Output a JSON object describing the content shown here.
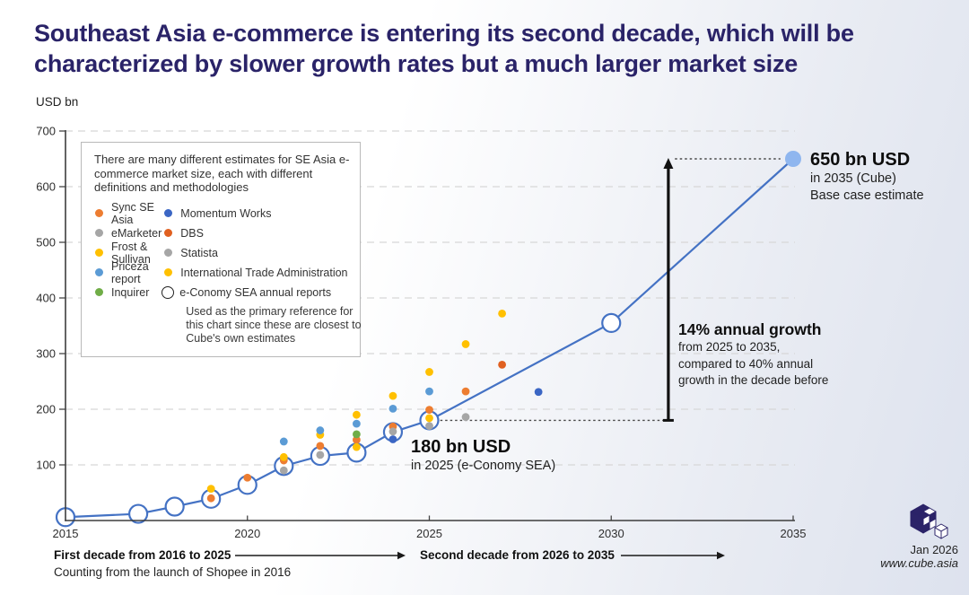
{
  "header": {
    "title_line1": "Southeast Asia e-commerce is entering its second decade, which will be",
    "title_line2": "characterized by slower growth rates but a much larger market size",
    "units_label": "USD bn"
  },
  "colors": {
    "title": "#2a2368",
    "line": "#4472C4",
    "cube_point": "#8FB6EF",
    "brand_navy": "#2B2368"
  },
  "note_box": {
    "intro": "There are many different estimates for SE Asia e-commerce market size, each with different definitions and methodologies",
    "legend_left": [
      {
        "label": "Sync SE Asia",
        "color": "#ED7D31"
      },
      {
        "label": "eMarketer",
        "color": "#A6A6A6"
      },
      {
        "label": "Frost & Sullivan",
        "color": "#FFC000"
      },
      {
        "label": "Priceza report",
        "color": "#5B9BD5"
      },
      {
        "label": "Inquirer",
        "color": "#70AD47"
      }
    ],
    "legend_right": [
      {
        "label": "Momentum Works",
        "color": "#3B66C4"
      },
      {
        "label": "DBS",
        "color": "#E06020"
      },
      {
        "label": "Statista",
        "color": "#A6A6A6"
      },
      {
        "label": "International Trade Administration",
        "color": "#FFC000"
      },
      {
        "label": "e-Conomy SEA annual reports",
        "marker": "open-circle"
      }
    ],
    "primary_note": "Used as the primary reference for this chart since these are closest to Cube's own estimates"
  },
  "annotations": {
    "peak": {
      "value": "650 bn USD",
      "line2": "in 2035 (Cube)",
      "line3": "Base case estimate"
    },
    "growth": {
      "title": "14% annual growth",
      "line2": "from 2025 to 2035,",
      "line3": "compared to 40% annual",
      "line4": "growth in the decade before"
    },
    "base": {
      "value": "180 bn USD",
      "line2": "in 2025 (e-Conomy SEA)"
    }
  },
  "footer": {
    "first_decade": "First decade from 2016 to 2025",
    "first_decade_sub": "Counting from the launch of Shopee in 2016",
    "second_decade": "Second decade from 2026 to 2035",
    "date": "Jan 2026",
    "website": "www.cube.asia"
  },
  "chart_data": {
    "type": "scatter",
    "title": "SE Asia e-commerce market size estimates",
    "ylabel": "USD bn",
    "xlim": [
      2015,
      2035
    ],
    "ylim": [
      0,
      700
    ],
    "xticks": [
      2015,
      2020,
      2025,
      2030,
      2035
    ],
    "yticks": [
      100,
      200,
      300,
      400,
      500,
      600,
      700
    ],
    "grid": "horizontal-dashed",
    "line_series": {
      "name": "e-Conomy SEA annual reports",
      "color": "#4472C4",
      "marker": "open-circle",
      "points": [
        [
          2015,
          6
        ],
        [
          2017,
          12
        ],
        [
          2018,
          25
        ],
        [
          2019,
          39
        ],
        [
          2020,
          64
        ],
        [
          2021,
          98
        ],
        [
          2022,
          116
        ],
        [
          2023,
          122
        ],
        [
          2024,
          159
        ],
        [
          2025,
          180
        ],
        [
          2030,
          355
        ],
        [
          2035,
          650
        ]
      ]
    },
    "cube_point": {
      "name": "Cube base case estimate",
      "x": 2035,
      "y": 650,
      "color": "#8FB6EF"
    },
    "estimates": [
      {
        "source": "Sync SE Asia",
        "color": "#ED7D31",
        "points": [
          [
            2019,
            40
          ],
          [
            2020,
            77
          ],
          [
            2021,
            108
          ],
          [
            2022,
            134
          ],
          [
            2023,
            145
          ],
          [
            2024,
            169
          ],
          [
            2025,
            199
          ],
          [
            2026,
            232
          ]
        ]
      },
      {
        "source": "eMarketer",
        "color": "#A6A6A6",
        "points": [
          [
            2021,
            90
          ],
          [
            2022,
            118
          ],
          [
            2025,
            170
          ]
        ]
      },
      {
        "source": "Frost & Sullivan",
        "color": "#FFC000",
        "points": [
          [
            2019,
            57
          ],
          [
            2021,
            114
          ],
          [
            2022,
            154
          ],
          [
            2023,
            132
          ],
          [
            2023,
            190
          ],
          [
            2024,
            224
          ],
          [
            2025,
            267
          ]
        ]
      },
      {
        "source": "Priceza report",
        "color": "#5B9BD5",
        "points": [
          [
            2021,
            142
          ],
          [
            2022,
            162
          ],
          [
            2023,
            174
          ],
          [
            2024,
            201
          ],
          [
            2025,
            232
          ]
        ]
      },
      {
        "source": "Inquirer",
        "color": "#70AD47",
        "points": [
          [
            2023,
            155
          ]
        ]
      },
      {
        "source": "Momentum Works",
        "color": "#3B66C4",
        "points": [
          [
            2024,
            146
          ],
          [
            2028,
            231
          ]
        ]
      },
      {
        "source": "DBS",
        "color": "#E06020",
        "points": [
          [
            2027,
            280
          ]
        ]
      },
      {
        "source": "Statista",
        "color": "#A6A6A6",
        "points": [
          [
            2024,
            160
          ],
          [
            2026,
            186
          ]
        ]
      },
      {
        "source": "International Trade Administration",
        "color": "#FFC000",
        "points": [
          [
            2025,
            184
          ],
          [
            2026,
            317
          ],
          [
            2027,
            372
          ]
        ]
      }
    ],
    "reference_lines": [
      {
        "style": "dotted",
        "value": 650,
        "from_x": 2031.75,
        "to_x": 2034.65
      },
      {
        "style": "dotted",
        "value": 180,
        "from_x": 2025.3,
        "to_x": 2031.57
      }
    ],
    "growth_arrow": {
      "x": 2031.57,
      "from": 180,
      "to": 650
    }
  }
}
